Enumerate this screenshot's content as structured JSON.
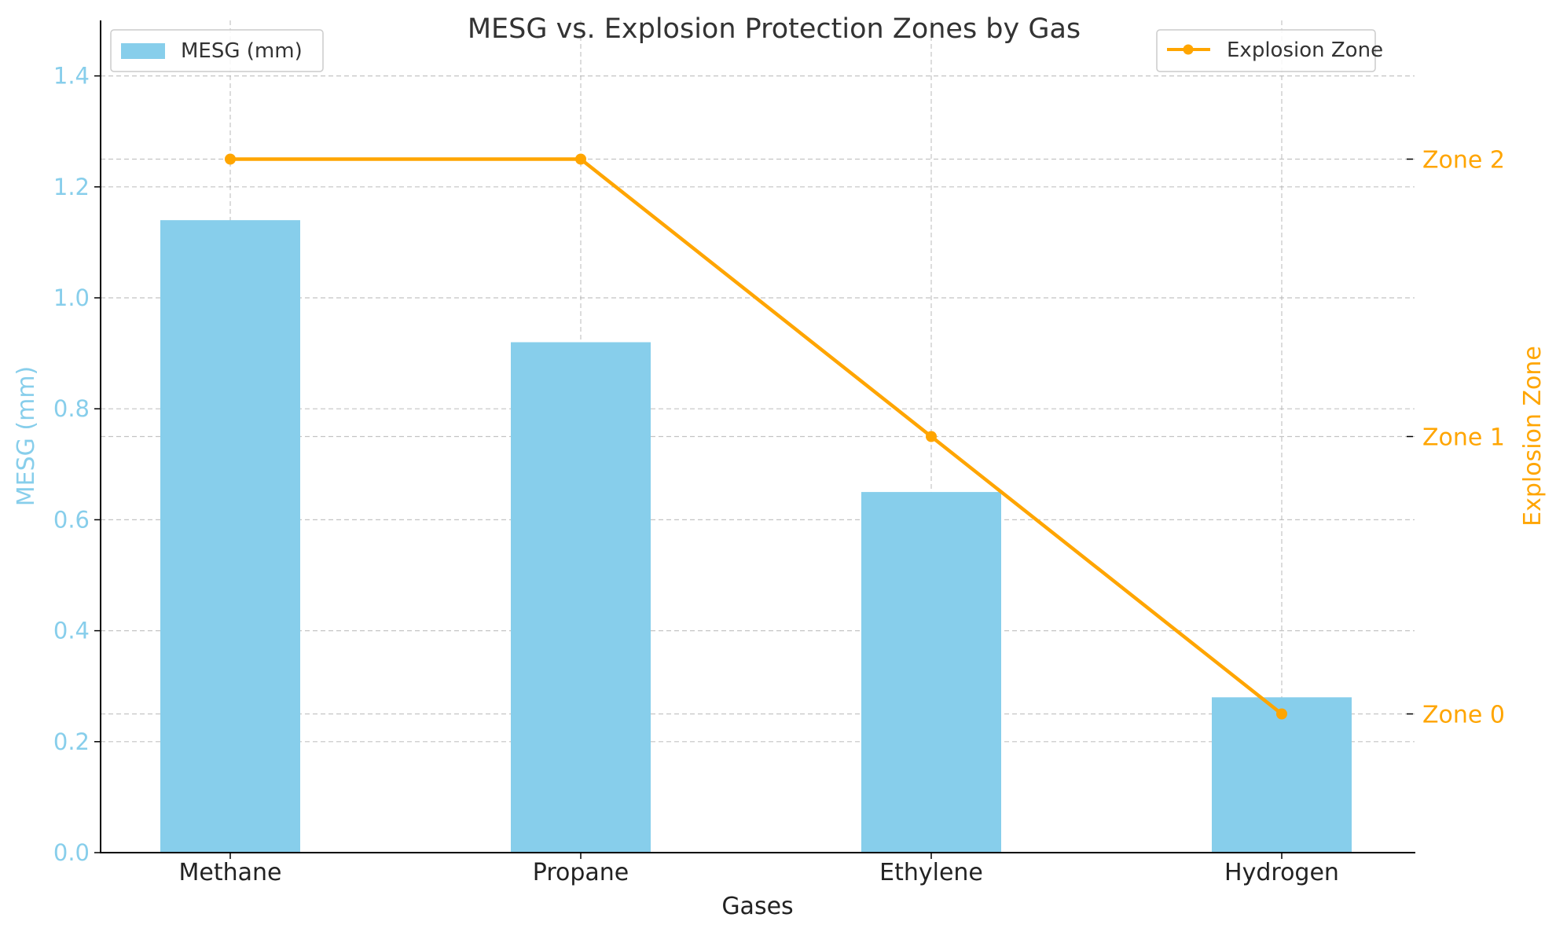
{
  "chart_data": {
    "type": "bar+line",
    "title": "MESG vs. Explosion Protection Zones by Gas",
    "xlabel": "Gases",
    "categories": [
      "Methane",
      "Propane",
      "Ethylene",
      "Hydrogen"
    ],
    "grid": true,
    "left_axis": {
      "label": "MESG (mm)",
      "ylim": [
        0,
        1.5
      ],
      "ticks": [
        0.0,
        0.2,
        0.4,
        0.6,
        0.8,
        1.0,
        1.2,
        1.4
      ],
      "tick_labels": [
        "0.0",
        "0.2",
        "0.4",
        "0.6",
        "0.8",
        "1.0",
        "1.2",
        "1.4"
      ],
      "color": "#87CEEB"
    },
    "right_axis": {
      "label": "Explosion Zone",
      "ylim": [
        -0.5,
        2.5
      ],
      "ticks": [
        0,
        1,
        2
      ],
      "tick_labels": [
        "Zone 0",
        "Zone 1",
        "Zone 2"
      ],
      "color": "#FFA500"
    },
    "series": [
      {
        "name": "MESG (mm)",
        "type": "bar",
        "axis": "left",
        "color": "#87CEEB",
        "values": [
          1.14,
          0.92,
          0.65,
          0.28
        ]
      },
      {
        "name": "Explosion Zone",
        "type": "line",
        "axis": "right",
        "color": "#FFA500",
        "values": [
          2,
          2,
          1,
          0
        ]
      }
    ],
    "legends": [
      {
        "placement": "top-left",
        "entries": [
          "MESG (mm)"
        ]
      },
      {
        "placement": "top-right",
        "entries": [
          "Explosion Zone"
        ]
      }
    ]
  }
}
